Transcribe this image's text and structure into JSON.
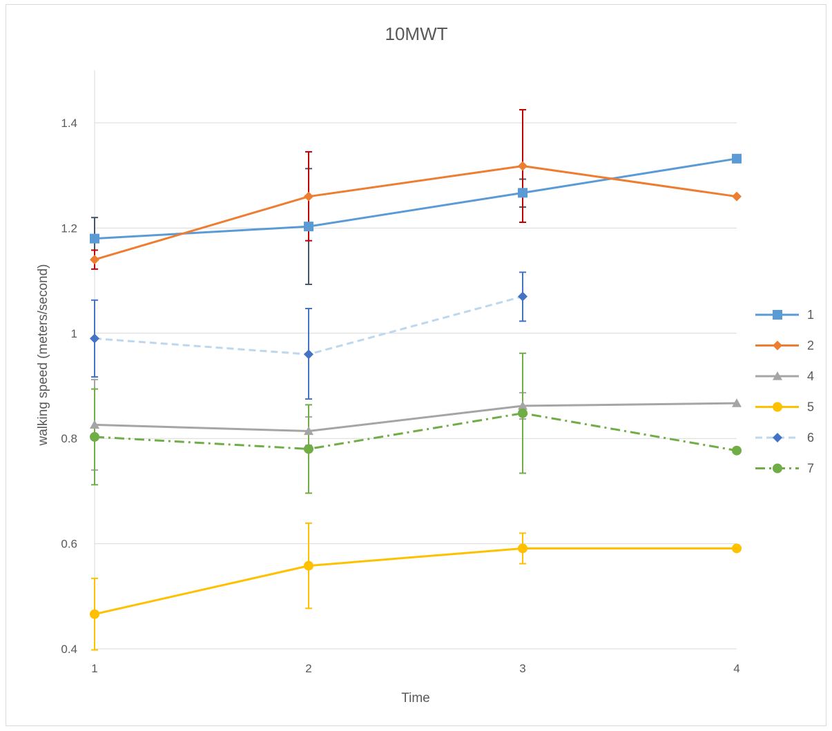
{
  "chart_data": {
    "type": "line",
    "title": "10MWT",
    "xlabel": "Time",
    "ylabel": "walking speed (meters/second)",
    "x": [
      1,
      2,
      3,
      4
    ],
    "x_tick_labels": [
      "1",
      "2",
      "3",
      "4"
    ],
    "ylim": [
      0.4,
      1.5
    ],
    "y_ticks": [
      0.4,
      0.6,
      0.8,
      1.0,
      1.2,
      1.4
    ],
    "y_tick_labels": [
      "0.4",
      "0.6",
      "0.8",
      "1",
      "1.2",
      "1.4"
    ],
    "grid": "horizontal",
    "legend_position": "right",
    "series": [
      {
        "name": "1",
        "color": "#5b9bd5",
        "marker": "square",
        "dash": "solid",
        "values": [
          1.18,
          1.203,
          1.267,
          1.332
        ],
        "error_color": "#44546a",
        "errors": [
          [
            1.14,
            1.22
          ],
          [
            1.093,
            1.313
          ],
          [
            1.24,
            1.293
          ],
          null
        ]
      },
      {
        "name": "2",
        "color": "#ed7d31",
        "marker": "diamond",
        "dash": "solid",
        "values": [
          1.14,
          1.26,
          1.318,
          1.26
        ],
        "error_color": "#c00000",
        "errors": [
          [
            1.122,
            1.158
          ],
          [
            1.176,
            1.345
          ],
          [
            1.211,
            1.425
          ],
          null
        ]
      },
      {
        "name": "4",
        "color": "#a5a5a5",
        "marker": "triangle",
        "dash": "solid",
        "values": [
          0.826,
          0.814,
          0.862,
          0.867
        ],
        "error_color": "#a5a5a5",
        "errors": [
          [
            0.74,
            0.912
          ],
          [
            0.787,
            0.841
          ],
          [
            0.837,
            0.887
          ],
          null
        ]
      },
      {
        "name": "5",
        "color": "#ffc000",
        "marker": "circle",
        "dash": "solid",
        "values": [
          0.466,
          0.558,
          0.591,
          0.591
        ],
        "error_color": "#ffc000",
        "errors": [
          [
            0.398,
            0.534
          ],
          [
            0.477,
            0.639
          ],
          [
            0.562,
            0.62
          ],
          null
        ]
      },
      {
        "name": "6",
        "color": "#bdd7ee",
        "marker": "diamond",
        "marker_color": "#4472c4",
        "dash": "dashed",
        "values": [
          0.99,
          0.96,
          1.07,
          null
        ],
        "error_color": "#4472c4",
        "errors": [
          [
            0.917,
            1.063
          ],
          [
            0.875,
            1.047
          ],
          [
            1.023,
            1.116
          ],
          null
        ]
      },
      {
        "name": "7",
        "color": "#70ad47",
        "marker": "circle",
        "dash": "dashdot",
        "values": [
          0.803,
          0.78,
          0.848,
          0.777
        ],
        "error_color": "#70ad47",
        "errors": [
          [
            0.712,
            0.894
          ],
          [
            0.696,
            0.864
          ],
          [
            0.734,
            0.962
          ],
          null
        ]
      }
    ]
  }
}
